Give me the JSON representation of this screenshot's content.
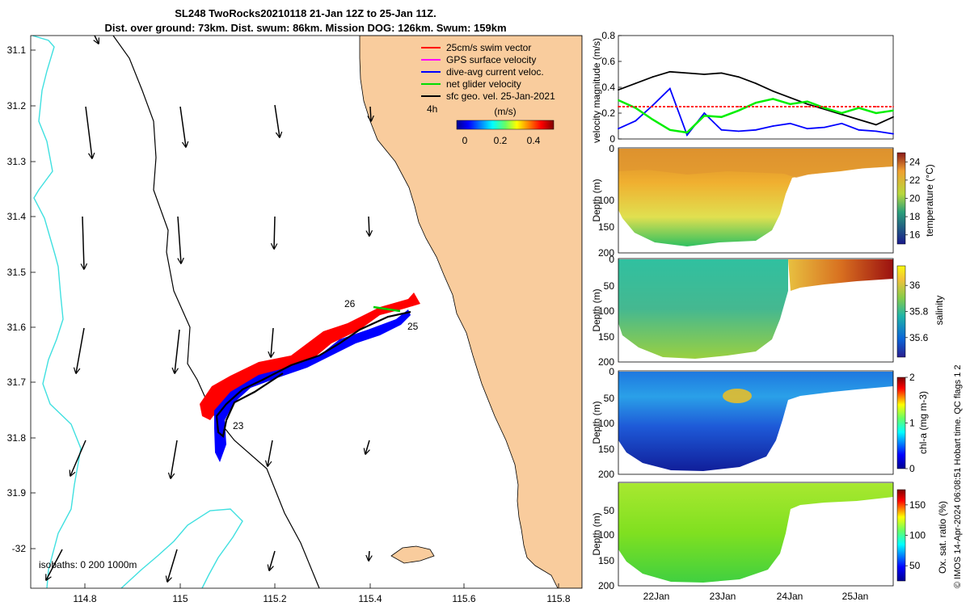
{
  "header": {
    "title_line1": "SL248 TwoRocks20210118 21-Jan 12Z to 25-Jan 11Z.",
    "title_line2": "Dist. over ground: 73km. Dist. swum: 86km. Mission DOG: 126km. Swum: 159km"
  },
  "map": {
    "legend": [
      {
        "label": "25cm/s swim vector",
        "color": "#ff0000"
      },
      {
        "label": "GPS surface velocity",
        "color": "#ff00ff"
      },
      {
        "label": "dive-avg current veloc.",
        "color": "#0000ff"
      },
      {
        "label": "net glider velocity",
        "color": "#00dd00"
      },
      {
        "label": "sfc geo. vel. 25-Jan-2021",
        "color": "#000000"
      }
    ],
    "legend_note": "4h",
    "colorbar_label": "(m/s)",
    "colorbar_ticks": [
      "0",
      "0.2",
      "0.4"
    ],
    "isobaths_text": "isobaths: 0   200  1000m",
    "day_labels": [
      "23",
      "25",
      "26"
    ],
    "land_color": "#f9cc9d",
    "isobath_color": "#40e0e0",
    "xaxis": {
      "ticks": [
        "114.8",
        "115",
        "115.2",
        "115.4",
        "115.6",
        "115.8"
      ]
    },
    "yaxis": {
      "ticks": [
        "31.1",
        "31.2",
        "31.3",
        "31.4",
        "31.5",
        "31.6",
        "31.7",
        "31.8",
        "31.9",
        "-32"
      ]
    }
  },
  "chart_data": [
    {
      "type": "line",
      "ylabel": "velocity magnitude (m/s)",
      "ylim": [
        0,
        0.8
      ],
      "yticks": [
        "0",
        "0.2",
        "0.4",
        "0.6",
        "0.8"
      ],
      "x": [
        "21-Jan 12Z",
        "21-Jan 18Z",
        "22-Jan 00Z",
        "22-Jan 06Z",
        "22-Jan 12Z",
        "22-Jan 18Z",
        "23-Jan 00Z",
        "23-Jan 06Z",
        "23-Jan 12Z",
        "23-Jan 18Z",
        "24-Jan 00Z",
        "24-Jan 06Z",
        "24-Jan 12Z",
        "24-Jan 18Z",
        "25-Jan 00Z",
        "25-Jan 06Z",
        "25-Jan 11Z"
      ],
      "series": [
        {
          "color": "#000000",
          "values": [
            0.38,
            0.43,
            0.48,
            0.52,
            0.51,
            0.5,
            0.51,
            0.48,
            0.43,
            0.37,
            0.32,
            0.27,
            0.23,
            0.19,
            0.15,
            0.11,
            0.17
          ]
        },
        {
          "color": "#0000ff",
          "values": [
            0.08,
            0.14,
            0.26,
            0.39,
            0.03,
            0.2,
            0.07,
            0.06,
            0.07,
            0.1,
            0.12,
            0.08,
            0.09,
            0.12,
            0.07,
            0.06,
            0.04
          ]
        },
        {
          "color": "#00ee00",
          "values": [
            0.3,
            0.24,
            0.15,
            0.07,
            0.05,
            0.18,
            0.17,
            0.22,
            0.28,
            0.31,
            0.27,
            0.29,
            0.24,
            0.2,
            0.24,
            0.2,
            0.22
          ]
        },
        {
          "color": "#ff0000",
          "values": [
            0.25,
            0.25,
            0.25,
            0.25,
            0.25,
            0.25,
            0.25,
            0.25,
            0.25,
            0.25,
            0.25,
            0.25,
            0.25,
            0.25,
            0.25,
            0.25,
            0.25
          ]
        }
      ]
    },
    {
      "type": "heatmap",
      "ylabel": "Depth (m)",
      "yticks": [
        "0",
        "100",
        "150",
        "200"
      ],
      "cbar_label": "temperature (°C)",
      "cbar_ticks": [
        "16",
        "18",
        "20",
        "22",
        "24"
      ],
      "cbar_range": [
        15,
        25
      ]
    },
    {
      "type": "heatmap",
      "ylabel": "Depth (m)",
      "yticks": [
        "0",
        "50",
        "100",
        "150",
        "200"
      ],
      "cbar_label": "salinity",
      "cbar_ticks": [
        "35.6",
        "35.8",
        "36"
      ],
      "cbar_range": [
        35.45,
        36.15
      ]
    },
    {
      "type": "heatmap",
      "ylabel": "Depth (m)",
      "yticks": [
        "0",
        "50",
        "100",
        "150",
        "200"
      ],
      "cbar_label": "chl-a (mg m-3)",
      "cbar_ticks": [
        "0",
        "1",
        "2"
      ],
      "cbar_range": [
        0,
        2
      ]
    },
    {
      "type": "heatmap",
      "ylabel": "Depth (m)",
      "yticks": [
        "50",
        "100",
        "150",
        "200"
      ],
      "cbar_label": "Ox. sat. ratio (%)",
      "cbar_ticks": [
        "50",
        "100",
        "150"
      ],
      "cbar_range": [
        25,
        175
      ]
    }
  ],
  "time_axis": {
    "ticks": [
      "22Jan",
      "23Jan",
      "24Jan",
      "25Jan"
    ]
  },
  "footer": "© IMOS 14-Apr-2024 06:08:51 Hobart time. QC flags 1  2"
}
